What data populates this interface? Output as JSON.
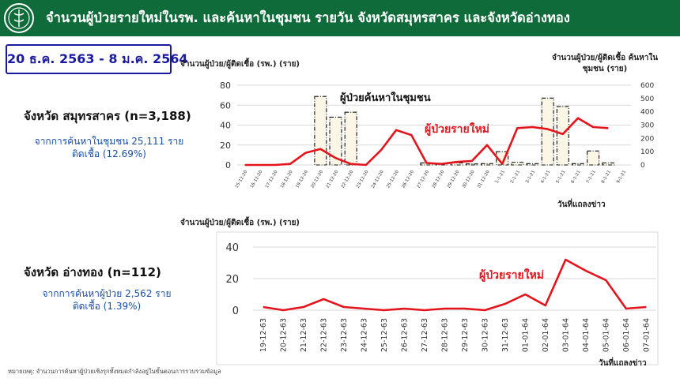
{
  "header": {
    "title": "จำนวนผู้ป่วยรายใหม่ในรพ. และค้นหาในชุมชน รายวัน จังหวัดสมุทรสาคร และจังหวัดอ่างทอง"
  },
  "date_range": "20 ธ.ค. 2563 - 8 ม.ค. 2564",
  "provinces": [
    {
      "name": "จังหวัด สมุทรสาคร (n=3,188)",
      "line1": "จากการค้นหาในชุมชน 25,111 ราย",
      "line2": "ติดเชื้อ (12.69%)"
    },
    {
      "name": "จังหวัด อ่างทอง (n=112)",
      "line1": "จากการค้นหาผู้ป่วย 2,562 ราย",
      "line2": "ติดเชื้อ (1.39%)"
    }
  ],
  "note": "หมายเหตุ: จำนวนการค้นหาผู้ป่วยเชิงรุกทั้งหมดกำลังอยู่ในขั้นตอนการรวบรวมข้อมูล",
  "colors": {
    "header_bg": "#0f6b3a",
    "line": "#e3141b",
    "bar_fill": "#fbf6e5",
    "date_box": "#1a1aa0",
    "blue_text": "#1a4fa8"
  },
  "chart_data": [
    {
      "type": "bar+line",
      "ylabel_left": "จำนวนผู้ป่วย/ผู้ติดเชื้อ (รพ.) (ราย)",
      "ylabel_right": "จำนวนผู้ป่วย/ผู้ติดเชื้อ ค้นหาในชุมชน (ราย)",
      "xlabel": "วันที่แถลงข่าว",
      "ylim_left": [
        0,
        80
      ],
      "yticks_left": [
        0,
        20,
        40,
        60,
        80
      ],
      "ylim_right": [
        0,
        600
      ],
      "yticks_right": [
        0,
        100,
        200,
        300,
        400,
        500,
        600
      ],
      "categories": [
        "15-12-20",
        "16-12-20",
        "17-12-20",
        "18-12-20",
        "19-12-20",
        "20-12-20",
        "21-12-20",
        "22-12-20",
        "23-12-20",
        "24-12-20",
        "25-12-20",
        "26-12-20",
        "27-12-20",
        "28-12-20",
        "29-12-20",
        "30-12-20",
        "31-12-20",
        "1-1-21",
        "2-1-21",
        "3-1-21",
        "4-1-21",
        "5-1-21",
        "6-1-21",
        "7-1-21",
        "8-1-21",
        "9-1-21"
      ],
      "series": [
        {
          "name": "ผู้ป่วยค้นหาในชุมชน",
          "kind": "bar",
          "axis": "right",
          "values": [
            0,
            0,
            0,
            0,
            0,
            516,
            360,
            397,
            0,
            0,
            0,
            0,
            15,
            10,
            15,
            8,
            10,
            100,
            20,
            10,
            503,
            440,
            10,
            105,
            15,
            0
          ]
        },
        {
          "name": "ผู้ป่วยรายใหม่",
          "kind": "line",
          "axis": "left",
          "values": [
            0,
            0,
            0,
            1,
            12,
            16,
            7,
            1,
            0,
            15,
            35,
            30,
            2,
            1,
            3,
            4,
            20,
            1,
            37,
            38,
            36,
            31,
            47,
            38,
            37,
            null
          ]
        }
      ]
    },
    {
      "type": "line",
      "ylabel": "จำนวนผู้ป่วย/ผู้ติดเชื้อ (รพ.) (ราย)",
      "xlabel": "วันที่แถลงข่าว",
      "ylim": [
        0,
        40
      ],
      "yticks": [
        0,
        20,
        40
      ],
      "categories": [
        "19-12-63",
        "20-12-63",
        "21-12-63",
        "22-12-63",
        "23-12-63",
        "24-12-63",
        "25-12-63",
        "26-12-63",
        "27-12-63",
        "28-12-63",
        "29-12-63",
        "30-12-63",
        "31-12-63",
        "01-01-64",
        "02-01-64",
        "03-01-64",
        "04-01-64",
        "05-01-64",
        "06-01-64",
        "07-01-64"
      ],
      "series": [
        {
          "name": "ผู้ป่วยรายใหม่",
          "values": [
            2,
            0,
            2,
            7,
            2,
            1,
            0,
            1,
            0,
            1,
            1,
            0,
            4,
            10,
            3,
            32,
            25,
            19,
            1,
            2
          ]
        }
      ]
    }
  ]
}
